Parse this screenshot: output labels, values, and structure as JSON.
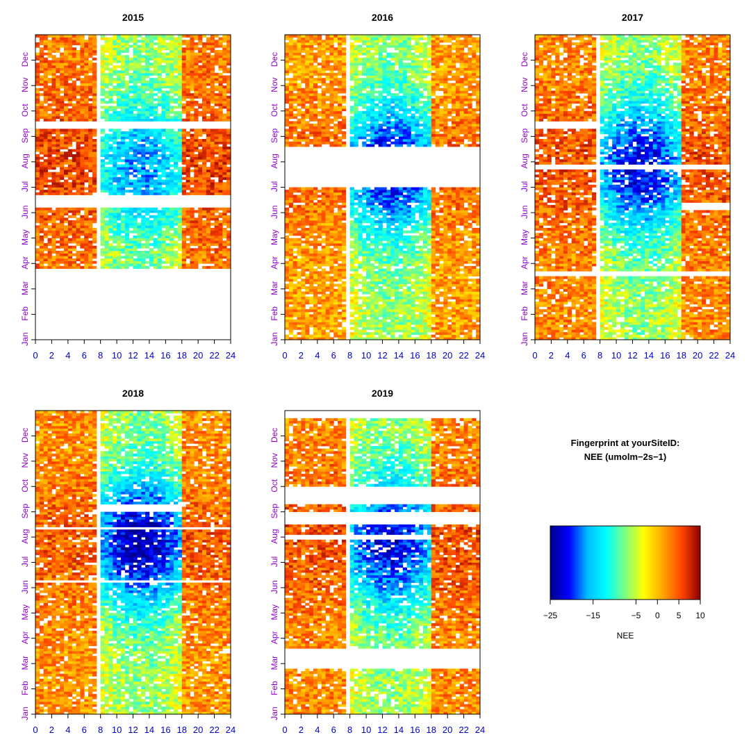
{
  "chart_data": {
    "type": "heatmap",
    "description_title": "Fingerprint at yourSiteID:",
    "description_subtitle": "NEE (umolm−2s−1)",
    "colorbar": {
      "label": "NEE",
      "range": [
        -25,
        10
      ],
      "tick_values": [
        -25,
        -15,
        -5,
        0,
        5,
        10
      ],
      "tick_labels": [
        "−25",
        "−15",
        "−5",
        "0",
        "5",
        "10"
      ],
      "stops": [
        "#00008b",
        "#0000ff",
        "#00bfff",
        "#00ffff",
        "#7fff7f",
        "#ffff00",
        "#ffa500",
        "#ff4500",
        "#8b0000"
      ]
    },
    "x_ticks": [
      0,
      2,
      4,
      6,
      8,
      10,
      12,
      14,
      16,
      18,
      20,
      22,
      24
    ],
    "x_range": [
      0,
      24
    ],
    "x_tick_color": "#0000cd",
    "y_tick_labels": [
      "Jan",
      "Feb",
      "Mar",
      "Apr",
      "May",
      "Jun",
      "Jul",
      "Aug",
      "Sep",
      "Oct",
      "Nov",
      "Dec"
    ],
    "y_tick_color": "#9400d3",
    "panels": [
      {
        "title": "2015",
        "gaps_month": [
          [
            0,
            2.8
          ],
          [
            5.15,
            5.75
          ],
          [
            8.35,
            8.6
          ]
        ],
        "gaps_hour": [
          [
            7.7,
            8.1
          ],
          [
            17.8,
            18.2
          ]
        ],
        "day_min": -17,
        "night_nee": 3,
        "partial_gaps": []
      },
      {
        "title": "2016",
        "gaps_month": [
          [
            6.0,
            7.6
          ]
        ],
        "gaps_hour": [
          [
            7.6,
            8.1
          ]
        ],
        "day_min": -22,
        "night_nee": 1.5,
        "partial_gaps": []
      },
      {
        "title": "2017",
        "gaps_month": [
          [
            2.55,
            2.75
          ],
          [
            6.75,
            6.95
          ]
        ],
        "gaps_hour": [
          [
            7.6,
            8.1
          ]
        ],
        "day_min": -22,
        "night_nee": 2.5,
        "partial_gaps": [
          [
            5.1,
            5.4,
            18,
            24
          ],
          [
            8.35,
            8.6,
            0,
            8
          ]
        ]
      },
      {
        "title": "2018",
        "gaps_month": [
          [
            5.2,
            5.3
          ],
          [
            7.3,
            7.4
          ]
        ],
        "gaps_hour": [
          [
            7.7,
            8.1
          ],
          [
            17.8,
            18.2
          ]
        ],
        "day_min": -24,
        "night_nee": 2,
        "partial_gaps": [
          [
            8.0,
            8.35,
            8,
            18
          ]
        ]
      },
      {
        "title": "2019",
        "gaps_month": [
          [
            1.85,
            2.6
          ],
          [
            7.5,
            7.95
          ],
          [
            8.6,
            8.7
          ],
          [
            11.75,
            12.0
          ]
        ],
        "gaps_hour": [
          [
            7.6,
            8.1
          ]
        ],
        "day_min": -22,
        "night_nee": 2.5,
        "partial_gaps": [
          [
            8.3,
            9.05,
            0,
            24
          ],
          [
            6.95,
            7.15,
            0,
            18
          ]
        ]
      }
    ]
  }
}
